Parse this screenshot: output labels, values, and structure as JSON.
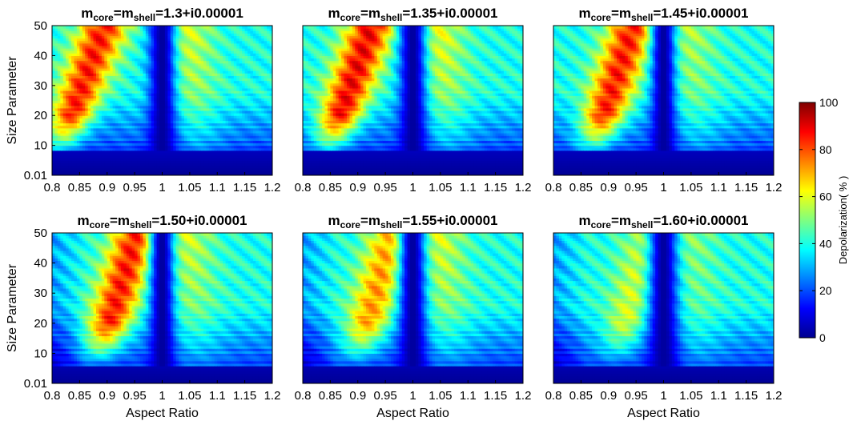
{
  "chart_data": {
    "type": "heatmap",
    "shared": {
      "xlabel": "Aspect Ratio",
      "ylabel": "Size Parameter",
      "xlim": [
        0.8,
        1.2
      ],
      "ylim": [
        0.01,
        50
      ],
      "x_ticks": [
        "0.8",
        "0.85",
        "0.9",
        "0.95",
        "1",
        "1.05",
        "1.1",
        "1.15",
        "1.2"
      ],
      "x_tick_values": [
        0.8,
        0.85,
        0.9,
        0.95,
        1.0,
        1.05,
        1.1,
        1.15,
        1.2
      ],
      "y_ticks": [
        "0.01",
        "10",
        "20",
        "30",
        "40",
        "50"
      ],
      "y_tick_values": [
        0.01,
        10,
        20,
        30,
        40,
        50
      ],
      "colormap": "jet",
      "colorbar": {
        "label": "Depolarization( % )",
        "ticks": [
          "0",
          "20",
          "40",
          "60",
          "80",
          "100"
        ],
        "tick_values": [
          0,
          20,
          40,
          60,
          80,
          100
        ],
        "range": [
          0,
          100
        ]
      }
    },
    "panels": [
      {
        "title_main": "m",
        "title_sub1": "core",
        "title_eq": "=m",
        "title_sub2": "shell",
        "title_value": "=1.3+i0.00001",
        "refractive_index": 1.3,
        "features": {
          "warm_left_center": 0.875,
          "warm_left_strength": 85,
          "right_warm_strength": 60,
          "dip_width": 0.018,
          "low_y_limit": 8
        }
      },
      {
        "title_main": "m",
        "title_sub1": "core",
        "title_eq": "=m",
        "title_sub2": "shell",
        "title_value": "=1.35+i0.00001",
        "refractive_index": 1.35,
        "features": {
          "warm_left_center": 0.905,
          "warm_left_strength": 88,
          "right_warm_strength": 62,
          "dip_width": 0.018,
          "low_y_limit": 8
        }
      },
      {
        "title_main": "m",
        "title_sub1": "core",
        "title_eq": "=m",
        "title_sub2": "shell",
        "title_value": "=1.45+i0.00001",
        "refractive_index": 1.45,
        "features": {
          "warm_left_center": 0.925,
          "warm_left_strength": 85,
          "right_warm_strength": 55,
          "dip_width": 0.016,
          "low_y_limit": 8
        }
      },
      {
        "title_main": "m",
        "title_sub1": "core",
        "title_eq": "=m",
        "title_sub2": "shell",
        "title_value": "=1.50+i0.00001",
        "refractive_index": 1.5,
        "features": {
          "warm_left_center": 0.935,
          "warm_left_strength": 85,
          "right_warm_strength": 58,
          "dip_width": 0.016,
          "low_y_limit": 6
        }
      },
      {
        "title_main": "m",
        "title_sub1": "core",
        "title_eq": "=m",
        "title_sub2": "shell",
        "title_value": "=1.55+i0.00001",
        "refractive_index": 1.55,
        "features": {
          "warm_left_center": 0.945,
          "warm_left_strength": 72,
          "right_warm_strength": 60,
          "dip_width": 0.018,
          "low_y_limit": 6
        }
      },
      {
        "title_main": "m",
        "title_sub1": "core",
        "title_eq": "=m",
        "title_sub2": "shell",
        "title_value": "=1.60+i0.00001",
        "refractive_index": 1.6,
        "features": {
          "warm_left_center": 0.955,
          "warm_left_strength": 58,
          "right_warm_strength": 52,
          "dip_width": 0.02,
          "low_y_limit": 6
        }
      }
    ]
  }
}
